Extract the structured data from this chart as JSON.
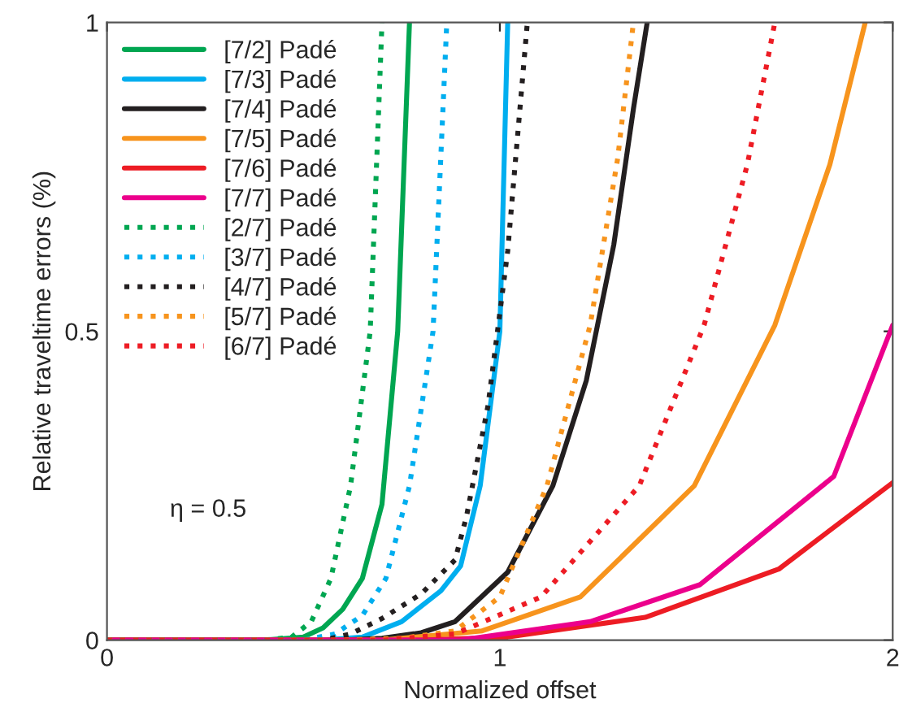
{
  "chart_data": {
    "type": "line",
    "xlabel": "Normalized offset",
    "ylabel": "Relative traveltime errors (%)",
    "xlim": [
      0,
      2
    ],
    "ylim": [
      0,
      1
    ],
    "xticks": [
      0,
      1,
      2
    ],
    "yticks": [
      0,
      0.5,
      1
    ],
    "grid": false,
    "legend": "top left",
    "marker": "none",
    "annotations": [
      "η = 0.5"
    ],
    "series": [
      {
        "name": "[7/2] Padé",
        "color": "#00a651",
        "line_style": "solid",
        "x": [
          0,
          0.4,
          0.5,
          0.55,
          0.6,
          0.65,
          0.7,
          0.74,
          0.77
        ],
        "values": [
          0,
          0,
          0.005,
          0.02,
          0.05,
          0.1,
          0.22,
          0.5,
          1.0
        ]
      },
      {
        "name": "[7/3] Padé",
        "color": "#00aeef",
        "line_style": "solid",
        "x": [
          0,
          0.55,
          0.65,
          0.75,
          0.85,
          0.9,
          0.95,
          1.0,
          1.02
        ],
        "values": [
          0,
          0,
          0.005,
          0.03,
          0.08,
          0.12,
          0.25,
          0.5,
          1.0
        ]
      },
      {
        "name": "[7/4] Padé",
        "color": "#231f20",
        "line_style": "solid",
        "x": [
          0,
          0.6,
          0.7,
          0.8,
          0.886,
          1.02,
          1.135,
          1.22,
          1.29,
          1.34,
          1.375
        ],
        "values": [
          0,
          0,
          0.003,
          0.012,
          0.03,
          0.11,
          0.25,
          0.42,
          0.64,
          0.86,
          1.0
        ]
      },
      {
        "name": "[7/5] Padé",
        "color": "#f7941d",
        "line_style": "solid",
        "x": [
          0,
          0.7,
          0.955,
          1.205,
          1.495,
          1.7,
          1.84,
          1.93
        ],
        "values": [
          0,
          0,
          0.015,
          0.07,
          0.25,
          0.51,
          0.77,
          1.0
        ]
      },
      {
        "name": "[7/6] Padé",
        "color": "#ed1c24",
        "line_style": "solid",
        "x": [
          0,
          0.8,
          1.02,
          1.37,
          1.71,
          2.0
        ],
        "values": [
          0,
          0,
          0.005,
          0.037,
          0.115,
          0.255
        ]
      },
      {
        "name": "[7/7] Padé",
        "color": "#ec008c",
        "line_style": "solid",
        "x": [
          0,
          0.9,
          1.23,
          1.51,
          1.85,
          2.0
        ],
        "values": [
          0,
          0,
          0.03,
          0.09,
          0.265,
          0.51
        ]
      },
      {
        "name": "[2/7] Padé",
        "color": "#00a651",
        "line_style": "dotted",
        "x": [
          0,
          0.4,
          0.47,
          0.52,
          0.57,
          0.62,
          0.67,
          0.7
        ],
        "values": [
          0,
          0,
          0.005,
          0.03,
          0.1,
          0.25,
          0.5,
          1.0
        ]
      },
      {
        "name": "[3/7] Padé",
        "color": "#00aeef",
        "line_style": "dotted",
        "x": [
          0,
          0.5,
          0.58,
          0.65,
          0.71,
          0.77,
          0.83,
          0.865
        ],
        "values": [
          0,
          0,
          0.01,
          0.04,
          0.1,
          0.25,
          0.5,
          1.0
        ]
      },
      {
        "name": "[4/7] Padé",
        "color": "#231f20",
        "line_style": "dotted",
        "x": [
          0,
          0.55,
          0.62,
          0.7,
          0.8,
          0.886,
          0.915,
          0.97,
          1.02,
          1.07
        ],
        "values": [
          0,
          0,
          0.01,
          0.035,
          0.075,
          0.13,
          0.2,
          0.38,
          0.63,
          1.0
        ]
      },
      {
        "name": "[5/7] Padé",
        "color": "#f7941d",
        "line_style": "dotted",
        "x": [
          0,
          0.6,
          0.75,
          0.886,
          1.0,
          1.12,
          1.23,
          1.3,
          1.34
        ],
        "values": [
          0,
          0,
          0.003,
          0.015,
          0.07,
          0.25,
          0.51,
          0.78,
          1.0
        ]
      },
      {
        "name": "[6/7] Padé",
        "color": "#ed1c24",
        "line_style": "dotted",
        "x": [
          0,
          0.7,
          0.886,
          1.105,
          1.355,
          1.52,
          1.63,
          1.7
        ],
        "values": [
          0,
          0,
          0.01,
          0.07,
          0.25,
          0.51,
          0.77,
          1.0
        ]
      }
    ]
  }
}
